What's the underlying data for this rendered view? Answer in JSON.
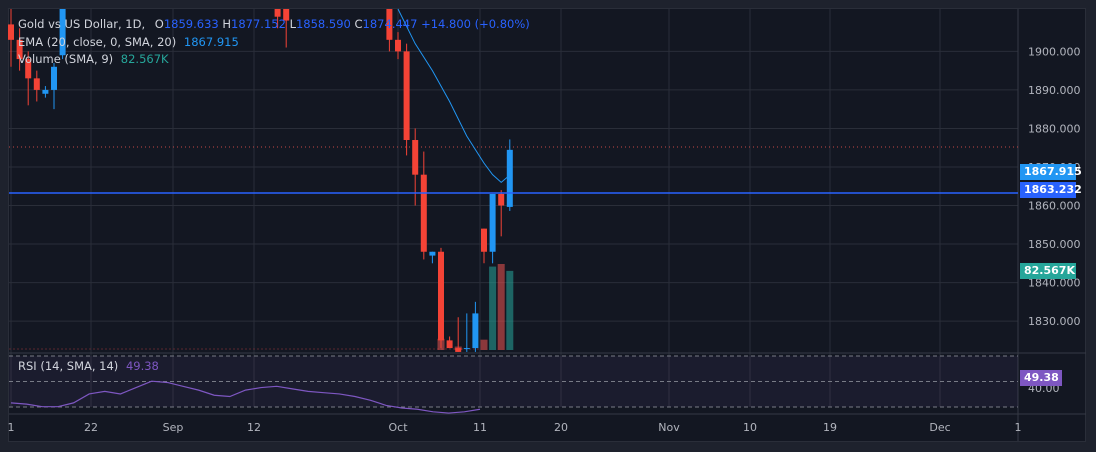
{
  "legend": {
    "symbol": "Gold vs US Dollar, 1D,",
    "open_label": "O",
    "open_value": "1859.633",
    "high_label": "H",
    "high_value": "1877.152",
    "low_label": "L",
    "low_value": "1858.590",
    "close_label": "C",
    "close_value": "1874.447",
    "change": "+14.800 (+0.80%)",
    "ema_label": "EMA (20, close, 0, SMA, 20)",
    "ema_value": "1867.915",
    "volume_label": "Volume (SMA, 9)",
    "volume_value": "82.567K",
    "rsi_label": "RSI (14, SMA, 14)",
    "rsi_value": "49.38"
  },
  "price_tags": {
    "ema": "1867.915",
    "price_line": "1863.232",
    "volume": "82.567K",
    "rsi": "49.38"
  },
  "colors": {
    "up": "#2196f3",
    "down": "#f44336",
    "ema_line": "#2196f3",
    "price_line": "#2962ff",
    "rsi_line": "#7e57c2",
    "volume_up": "#26a69a",
    "volume_down": "#ef5350"
  },
  "chart_data": {
    "type": "candlestick",
    "y_axis_ticks": [
      "1900.000",
      "1890.000",
      "1880.000",
      "1870.000",
      "1860.000",
      "1850.000",
      "1840.000",
      "1830.000"
    ],
    "y_ticks_values": [
      1900,
      1890,
      1880,
      1870,
      1860,
      1850,
      1840,
      1830
    ],
    "ylim": [
      1822.5,
      1911
    ],
    "x_axis_ticks": [
      "1",
      "22",
      "Sep",
      "12",
      "Oct",
      "11",
      "20",
      "Nov",
      "10",
      "19",
      "Dec",
      "1"
    ],
    "rsi_axis_tick": "40.00",
    "rsi_ylim": [
      30,
      70
    ],
    "candles": [
      {
        "i": 0,
        "o": 1907,
        "h": 1911,
        "l": 1896,
        "c": 1903
      },
      {
        "i": 1,
        "o": 1903,
        "h": 1906,
        "l": 1895,
        "c": 1898
      },
      {
        "i": 2,
        "o": 1898,
        "h": 1900,
        "l": 1886,
        "c": 1893
      },
      {
        "i": 3,
        "o": 1893,
        "h": 1895,
        "l": 1887,
        "c": 1890
      },
      {
        "i": 4,
        "o": 1889,
        "h": 1891,
        "l": 1888,
        "c": 1890
      },
      {
        "i": 5,
        "o": 1890,
        "h": 1897,
        "l": 1885,
        "c": 1896
      },
      {
        "i": 6,
        "o": 1899,
        "h": 1911,
        "l": 1898,
        "c": 1911
      },
      {
        "i": 31,
        "o": 1911,
        "h": 1911,
        "l": 1906,
        "c": 1909
      },
      {
        "i": 32,
        "o": 1911,
        "h": 1911,
        "l": 1901,
        "c": 1908
      },
      {
        "i": 44,
        "o": 1911,
        "h": 1911,
        "l": 1900,
        "c": 1903
      },
      {
        "i": 45,
        "o": 1903,
        "h": 1905,
        "l": 1898,
        "c": 1900
      },
      {
        "i": 46,
        "o": 1900,
        "h": 1902,
        "l": 1873,
        "c": 1877
      },
      {
        "i": 47,
        "o": 1877,
        "h": 1880,
        "l": 1860,
        "c": 1868
      },
      {
        "i": 48,
        "o": 1868,
        "h": 1874,
        "l": 1846,
        "c": 1848
      },
      {
        "i": 49,
        "o": 1847,
        "h": 1848,
        "l": 1845,
        "c": 1848
      },
      {
        "i": 50,
        "o": 1848,
        "h": 1849,
        "l": 1823,
        "c": 1825
      },
      {
        "i": 51,
        "o": 1825,
        "h": 1826,
        "l": 1823,
        "c": 1823
      },
      {
        "i": 52,
        "o": 1823,
        "h": 1831,
        "l": 1822,
        "c": 1822
      },
      {
        "i": 53,
        "o": 1823,
        "h": 1832,
        "l": 1822,
        "c": 1823
      },
      {
        "i": 54,
        "o": 1823,
        "h": 1835,
        "l": 1822,
        "c": 1832
      },
      {
        "i": 55,
        "o": 1854,
        "h": 1854,
        "l": 1845,
        "c": 1848
      },
      {
        "i": 56,
        "o": 1848,
        "h": 1863,
        "l": 1845,
        "c": 1863
      },
      {
        "i": 57,
        "o": 1863,
        "h": 1864,
        "l": 1852,
        "c": 1860
      },
      {
        "i": 58,
        "o": 1859.633,
        "h": 1877.152,
        "l": 1858.59,
        "c": 1874.447
      }
    ],
    "ema": [
      [
        45,
        1911
      ],
      [
        47,
        1902
      ],
      [
        49,
        1895
      ],
      [
        51,
        1887
      ],
      [
        53,
        1878
      ],
      [
        55,
        1871
      ],
      [
        56,
        1868
      ],
      [
        57,
        1866
      ],
      [
        58,
        1867.9
      ]
    ],
    "price_line": 1863.232,
    "volume": [
      {
        "i": 50,
        "v": 0.13,
        "up": false
      },
      {
        "i": 52,
        "v": 0.04,
        "up": false
      },
      {
        "i": 55,
        "v": 0.12,
        "up": false
      },
      {
        "i": 56,
        "v": 0.97,
        "up": true
      },
      {
        "i": 57,
        "v": 1.0,
        "up": false
      },
      {
        "i": 58,
        "v": 0.92,
        "up": true
      }
    ],
    "rsi": [
      [
        0,
        45
      ],
      [
        3,
        44
      ],
      [
        6,
        42
      ],
      [
        9,
        42
      ],
      [
        12,
        45
      ],
      [
        15,
        52
      ],
      [
        18,
        54
      ],
      [
        21,
        52
      ],
      [
        24,
        57
      ],
      [
        27,
        62
      ],
      [
        30,
        61
      ],
      [
        33,
        58
      ],
      [
        36,
        55
      ],
      [
        39,
        51
      ],
      [
        42,
        50
      ],
      [
        45,
        55
      ],
      [
        48,
        57
      ],
      [
        51,
        58
      ],
      [
        54,
        56
      ],
      [
        57,
        54
      ],
      [
        60,
        53
      ],
      [
        63,
        52
      ],
      [
        66,
        50
      ],
      [
        69,
        47
      ],
      [
        72,
        43
      ],
      [
        75,
        41
      ],
      [
        78,
        40
      ],
      [
        81,
        38
      ],
      [
        84,
        37
      ],
      [
        87,
        38
      ],
      [
        90,
        40
      ]
    ]
  }
}
